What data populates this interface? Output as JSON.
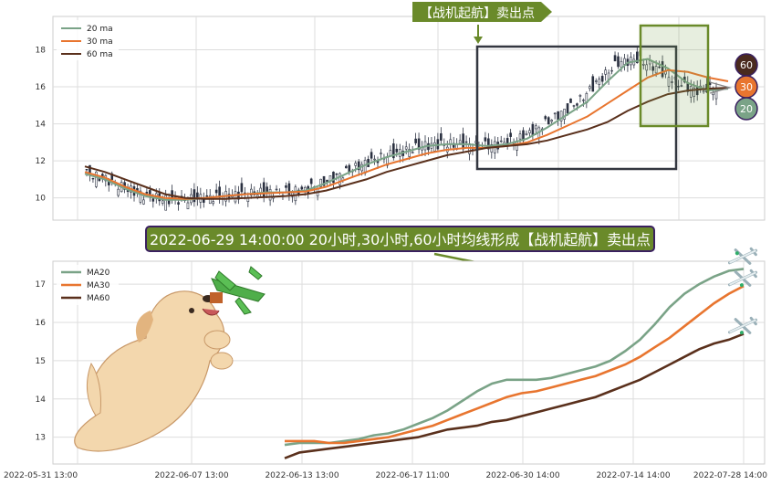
{
  "chart_data": [
    {
      "type": "candlestick",
      "ylim": [
        8.8,
        19.8
      ],
      "yticks": [
        10,
        12,
        14,
        16,
        18
      ],
      "grid": true,
      "legend_position": "top-left",
      "legend": [
        {
          "name": "20 ma",
          "color": "#7aa387"
        },
        {
          "name": "30 ma",
          "color": "#e8752f"
        },
        {
          "name": "60 ma",
          "color": "#5a301c"
        }
      ],
      "series": [
        {
          "name": "20 ma",
          "color": "#7aa387",
          "values": [
            11.3,
            11.0,
            10.5,
            10.1,
            9.9,
            9.9,
            10.0,
            10.1,
            10.2,
            10.3,
            10.3,
            10.4,
            10.8,
            11.3,
            11.8,
            12.2,
            12.5,
            12.8,
            12.9,
            12.9,
            12.8,
            12.9,
            13.2,
            13.8,
            14.5,
            15.2,
            16.3,
            17.3,
            17.5,
            17.0,
            16.2,
            15.8,
            15.9
          ]
        },
        {
          "name": "30 ma",
          "color": "#e8752f",
          "values": [
            11.4,
            11.1,
            10.6,
            10.2,
            10.0,
            9.95,
            10.0,
            10.1,
            10.2,
            10.25,
            10.3,
            10.35,
            10.6,
            11.0,
            11.4,
            11.8,
            12.1,
            12.4,
            12.6,
            12.7,
            12.7,
            12.8,
            13.0,
            13.4,
            13.9,
            14.4,
            15.1,
            15.8,
            16.5,
            16.9,
            16.8,
            16.5,
            16.3
          ]
        },
        {
          "name": "60 ma",
          "color": "#5a301c",
          "values": [
            11.7,
            11.4,
            11.0,
            10.6,
            10.2,
            10.0,
            9.95,
            9.95,
            10.0,
            10.05,
            10.1,
            10.2,
            10.4,
            10.7,
            11.0,
            11.4,
            11.7,
            12.0,
            12.3,
            12.5,
            12.7,
            12.8,
            12.9,
            13.1,
            13.4,
            13.7,
            14.1,
            14.7,
            15.2,
            15.6,
            15.8,
            15.9,
            15.95
          ]
        }
      ],
      "badges": [
        {
          "label": "60",
          "value": 17.35,
          "color": "#4a2a1e"
        },
        {
          "label": "30",
          "value": 16.1,
          "color": "#e8752f"
        },
        {
          "label": "20",
          "value": 14.9,
          "color": "#7aa387"
        }
      ],
      "annotation": "【战机起航】卖出点"
    },
    {
      "type": "line",
      "ylim": [
        12.3,
        17.6
      ],
      "yticks": [
        13,
        14,
        15,
        16,
        17
      ],
      "grid": true,
      "legend_position": "top-left",
      "x_tick_labels": [
        "2022-05-31 13:00",
        "2022-06-07 13:00",
        "2022-06-13 13:00",
        "2022-06-17 11:00",
        "2022-06-30 14:00",
        "2022-07-14 14:00",
        "2022-07-28 14:00"
      ],
      "series": [
        {
          "name": "MA20",
          "color": "#7aa387",
          "values": [
            12.8,
            12.85,
            12.85,
            12.85,
            12.9,
            12.95,
            13.05,
            13.1,
            13.2,
            13.35,
            13.5,
            13.7,
            13.95,
            14.2,
            14.4,
            14.5,
            14.5,
            14.5,
            14.55,
            14.65,
            14.75,
            14.85,
            15.0,
            15.25,
            15.55,
            15.95,
            16.4,
            16.75,
            17.0,
            17.2,
            17.35,
            17.4
          ]
        },
        {
          "name": "MA30",
          "color": "#e8752f",
          "values": [
            12.9,
            12.9,
            12.9,
            12.85,
            12.85,
            12.9,
            12.95,
            13.0,
            13.1,
            13.2,
            13.3,
            13.45,
            13.6,
            13.75,
            13.9,
            14.05,
            14.15,
            14.2,
            14.3,
            14.4,
            14.5,
            14.6,
            14.75,
            14.9,
            15.1,
            15.35,
            15.6,
            15.9,
            16.2,
            16.5,
            16.75,
            16.95
          ]
        },
        {
          "name": "MA60",
          "color": "#5a301c",
          "values": [
            12.45,
            12.6,
            12.65,
            12.7,
            12.75,
            12.8,
            12.85,
            12.9,
            12.95,
            13.0,
            13.1,
            13.2,
            13.25,
            13.3,
            13.4,
            13.45,
            13.55,
            13.65,
            13.75,
            13.85,
            13.95,
            14.05,
            14.2,
            14.35,
            14.5,
            14.7,
            14.9,
            15.1,
            15.3,
            15.45,
            15.55,
            15.7
          ]
        }
      ],
      "banner": "2022-06-29 14:00:00 20小时,30小时,60小时均线形成【战机起航】卖出点"
    }
  ]
}
